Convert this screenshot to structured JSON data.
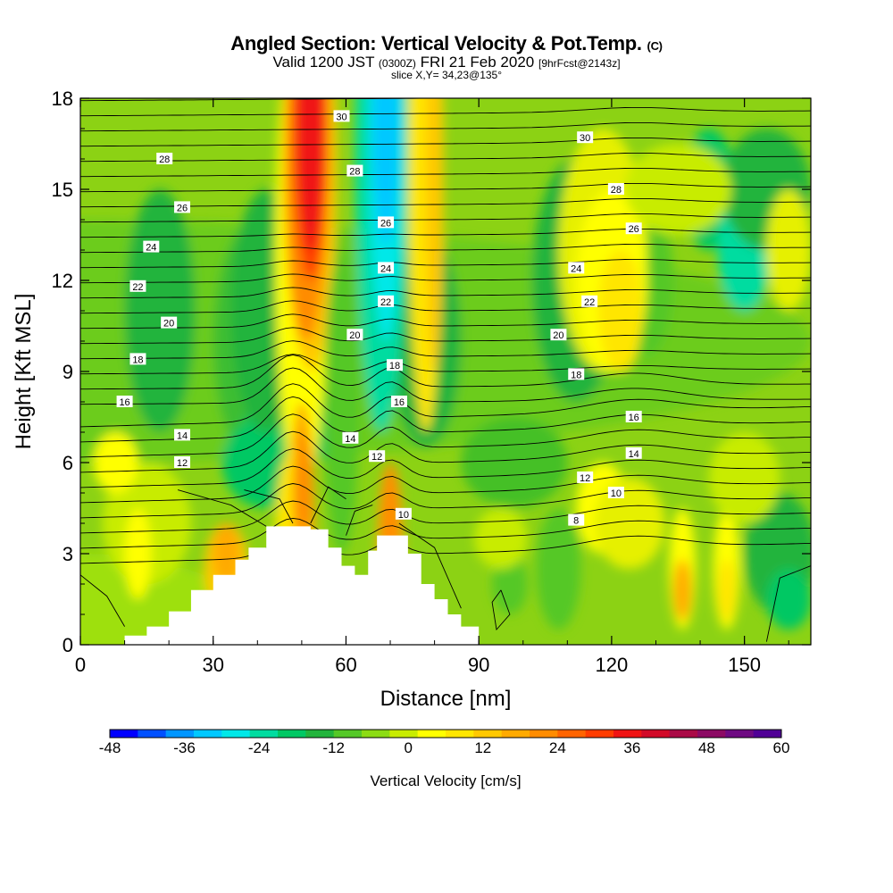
{
  "header": {
    "title": "Angled Section: Vertical Velocity & Pot.Temp.",
    "title_unit": "(C)",
    "valid_prefix": "Valid 1200 JST",
    "valid_utc": "(0300Z)",
    "valid_date": "FRI 21 Feb 2020",
    "forecast_tag": "[9hrFcst@2143z]",
    "slice": "slice X,Y= 34,23@135°"
  },
  "chart_data": {
    "type": "heatmap",
    "xlabel": "Distance [nm]",
    "ylabel": "Height [Kft MSL]",
    "xlim": [
      0,
      165
    ],
    "ylim": [
      0,
      18
    ],
    "x_ticks": [
      0,
      30,
      60,
      90,
      120,
      150
    ],
    "y_ticks": [
      0,
      3,
      6,
      9,
      12,
      15,
      18
    ],
    "x_tick_labels": [
      "0",
      "30",
      "60",
      "90",
      "120",
      "150"
    ],
    "y_tick_labels": [
      "0",
      "3",
      "6",
      "9",
      "12",
      "15",
      "18"
    ],
    "colorbar": {
      "label": "Vertical Velocity [cm/s]",
      "min": -48,
      "max": 60,
      "tick_values": [
        -48,
        -36,
        -24,
        -12,
        0,
        12,
        24,
        36,
        48,
        60
      ],
      "tick_labels": [
        "-48",
        "-36",
        "-24",
        "-12",
        "0",
        "12",
        "24",
        "36",
        "48",
        "60"
      ],
      "colors": [
        "#0000ff",
        "#0050ff",
        "#0096ff",
        "#00c8ff",
        "#00e8e8",
        "#00dca0",
        "#00c864",
        "#22b43c",
        "#55c828",
        "#8cdc14",
        "#c8ec00",
        "#ffff00",
        "#ffe600",
        "#ffc800",
        "#ffaa00",
        "#ff8c00",
        "#ff6400",
        "#ff3c00",
        "#f01414",
        "#d20a28",
        "#aa0a46",
        "#8c0a64",
        "#6e0a82",
        "#500096"
      ]
    },
    "terrain": [
      [
        10,
        0.3
      ],
      [
        15,
        0.6
      ],
      [
        20,
        1.1
      ],
      [
        25,
        1.8
      ],
      [
        30,
        2.3
      ],
      [
        35,
        2.8
      ],
      [
        38,
        3.2
      ],
      [
        42,
        3.9
      ],
      [
        47,
        3.9
      ],
      [
        52,
        3.8
      ],
      [
        56,
        3.2
      ],
      [
        59,
        2.6
      ],
      [
        62,
        2.3
      ],
      [
        65,
        3.1
      ],
      [
        67,
        3.6
      ],
      [
        71,
        3.6
      ],
      [
        74,
        3.0
      ],
      [
        77,
        2.0
      ],
      [
        80,
        1.5
      ],
      [
        83,
        1.0
      ],
      [
        86,
        0.6
      ],
      [
        90,
        0.3
      ]
    ],
    "contours": {
      "variable": "Potential Temperature (C)",
      "labels": [
        {
          "text": "30",
          "x": 59,
          "y": 17.4
        },
        {
          "text": "28",
          "x": 19,
          "y": 16.0
        },
        {
          "text": "28",
          "x": 62,
          "y": 15.6
        },
        {
          "text": "26",
          "x": 23,
          "y": 14.4
        },
        {
          "text": "26",
          "x": 69,
          "y": 13.9
        },
        {
          "text": "24",
          "x": 16,
          "y": 13.1
        },
        {
          "text": "24",
          "x": 69,
          "y": 12.4
        },
        {
          "text": "22",
          "x": 13,
          "y": 11.8
        },
        {
          "text": "22",
          "x": 69,
          "y": 11.3
        },
        {
          "text": "20",
          "x": 20,
          "y": 10.6
        },
        {
          "text": "20",
          "x": 62,
          "y": 10.2
        },
        {
          "text": "18",
          "x": 13,
          "y": 9.4
        },
        {
          "text": "18",
          "x": 71,
          "y": 9.2
        },
        {
          "text": "16",
          "x": 10,
          "y": 8.0
        },
        {
          "text": "16",
          "x": 72,
          "y": 8.0
        },
        {
          "text": "14",
          "x": 23,
          "y": 6.9
        },
        {
          "text": "14",
          "x": 61,
          "y": 6.8
        },
        {
          "text": "12",
          "x": 23,
          "y": 6.0
        },
        {
          "text": "12",
          "x": 67,
          "y": 6.2
        },
        {
          "text": "10",
          "x": 73,
          "y": 4.3
        },
        {
          "text": "30",
          "x": 114,
          "y": 16.7
        },
        {
          "text": "28",
          "x": 121,
          "y": 15.0
        },
        {
          "text": "26",
          "x": 125,
          "y": 13.7
        },
        {
          "text": "24",
          "x": 112,
          "y": 12.4
        },
        {
          "text": "22",
          "x": 115,
          "y": 11.3
        },
        {
          "text": "20",
          "x": 108,
          "y": 10.2
        },
        {
          "text": "18",
          "x": 112,
          "y": 8.9
        },
        {
          "text": "16",
          "x": 125,
          "y": 7.5
        },
        {
          "text": "14",
          "x": 125,
          "y": 6.3
        },
        {
          "text": "12",
          "x": 114,
          "y": 5.5
        },
        {
          "text": "10",
          "x": 121,
          "y": 5.0
        },
        {
          "text": "8",
          "x": 112,
          "y": 4.1
        }
      ]
    }
  }
}
